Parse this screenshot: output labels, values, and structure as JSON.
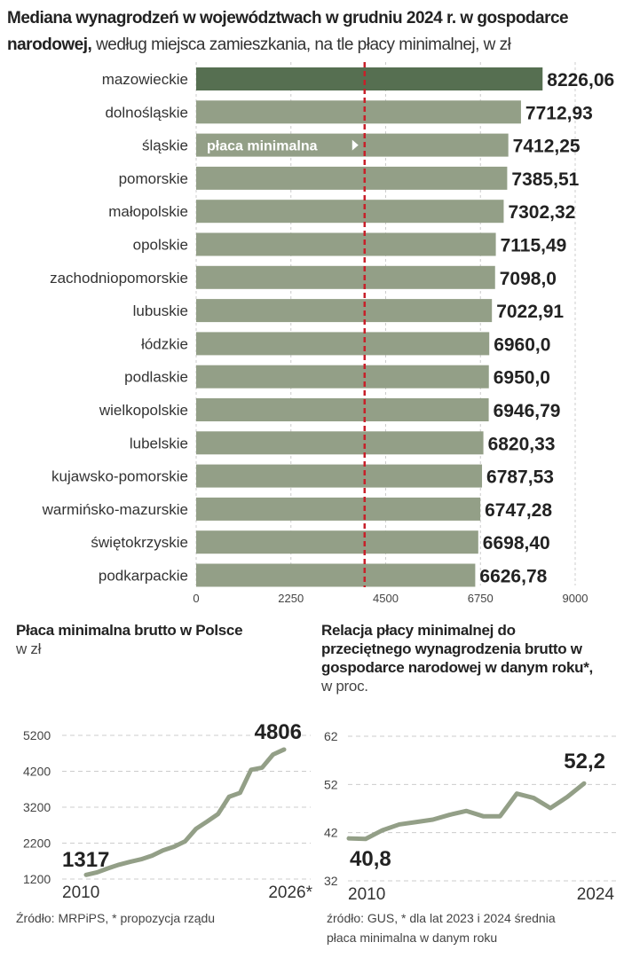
{
  "title": {
    "bold": "Mediana wynagrodzeń w województwach w grudniu 2024 r. w gospodarce narodowej,",
    "rest": " według miejsca zamieszkania, na tle płacy minimalnej, w zł"
  },
  "colors": {
    "highlight_bar": "#566f51",
    "bar": "#939f87",
    "min_wage_line": "#c8202a",
    "line": "#939f87"
  },
  "chart_data": [
    {
      "type": "bar",
      "orientation": "horizontal",
      "categories": [
        "mazowieckie",
        "dolnośląskie",
        "śląskie",
        "pomorskie",
        "małopolskie",
        "opolskie",
        "zachodniopomorskie",
        "lubuskie",
        "łódzkie",
        "podlaskie",
        "wielkopolskie",
        "lubelskie",
        "kujawsko-pomorskie",
        "warmińsko-mazurskie",
        "świętokrzyskie",
        "podkarpackie"
      ],
      "values": [
        8226.06,
        7712.93,
        7412.25,
        7385.51,
        7302.32,
        7115.49,
        7098.0,
        7022.91,
        6960.0,
        6950.0,
        6946.79,
        6820.33,
        6787.53,
        6747.28,
        6698.4,
        6626.78
      ],
      "value_labels": [
        "8226,06",
        "7712,93",
        "7412,25",
        "7385,51",
        "7302,32",
        "7115,49",
        "7098,0",
        "7022,91",
        "6960,0",
        "6950,0",
        "6946,79",
        "6820,33",
        "6787,53",
        "6747,28",
        "6698,40",
        "6626,78"
      ],
      "xlim": [
        0,
        9000
      ],
      "x_ticks": [
        "0",
        "2250",
        "4500",
        "6750",
        "9000"
      ],
      "x_tick_values": [
        0,
        2250,
        4500,
        6750,
        9000
      ],
      "grid": true,
      "reference_line": {
        "label": "płaca minimalna",
        "value": 4000
      }
    },
    {
      "type": "line",
      "title": "Płaca minimalna brutto w Polsce",
      "subtitle": "w zł",
      "x_labels": [
        "2010",
        "2026*"
      ],
      "values": [
        1317,
        1386,
        1500,
        1600,
        1680,
        1750,
        1850,
        2000,
        2100,
        2250,
        2600,
        2800,
        3010,
        3490,
        3600,
        4242,
        4300,
        4666,
        4806
      ],
      "ylim": [
        1200,
        5200
      ],
      "y_ticks": [
        "5200",
        "4200",
        "3200",
        "2200",
        "1200"
      ],
      "y_tick_values": [
        5200,
        4200,
        3200,
        2200,
        1200
      ],
      "start_label": "1317",
      "end_label": "4806",
      "grid": true,
      "source": "Źródło: MRPiPS, * propozycja rządu"
    },
    {
      "type": "line",
      "title": "Relacja płacy minimalnej do przeciętnego wynagrodzenia brutto w gospodarce narodowej w danym roku*,",
      "subtitle": " w proc.",
      "x_labels": [
        "2010",
        "2024"
      ],
      "x": [
        2010,
        2011,
        2012,
        2013,
        2014,
        2015,
        2016,
        2017,
        2018,
        2019,
        2020,
        2021,
        2022,
        2023,
        2024
      ],
      "values": [
        40.8,
        40.7,
        42.5,
        43.7,
        44.2,
        44.7,
        45.7,
        46.5,
        45.4,
        45.4,
        50.1,
        49.2,
        47.1,
        49.4,
        52.2
      ],
      "ylim": [
        32,
        62
      ],
      "y_ticks": [
        "62",
        "52",
        "42",
        "32"
      ],
      "y_tick_values": [
        62,
        52,
        42,
        32
      ],
      "start_label": "40,8",
      "end_label": "52,2",
      "grid": true,
      "source_lines": [
        "źródło: GUS, * dla lat 2023 i 2024 średnia",
        "płaca minimalna w danym roku"
      ]
    }
  ]
}
